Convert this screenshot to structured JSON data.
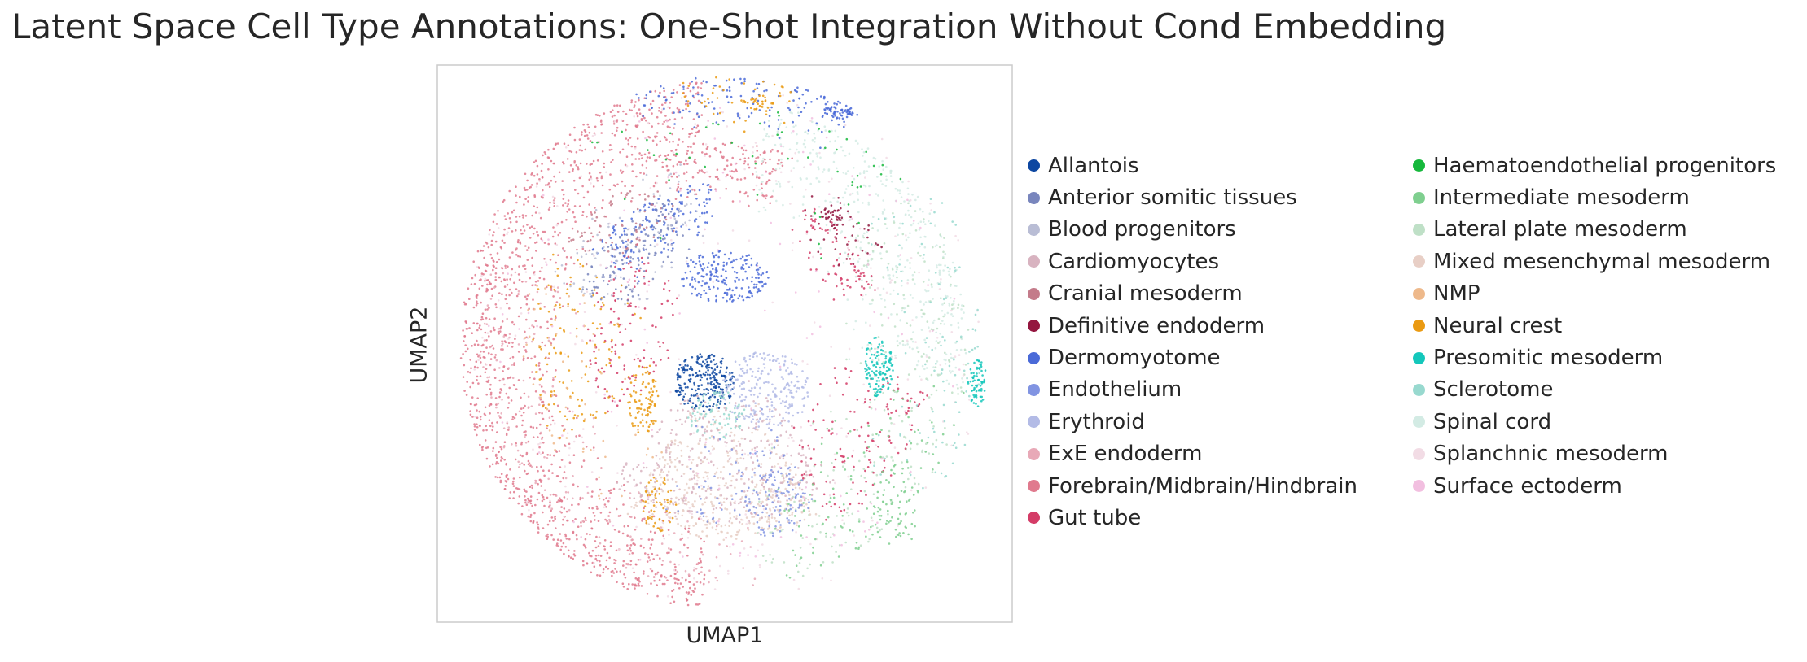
{
  "chart_data": {
    "type": "scatter",
    "title": "Latent Space Cell Type Annotations: One-Shot Integration Without Cond Embedding",
    "xlabel": "UMAP1",
    "ylabel": "UMAP2",
    "grid": false,
    "xticks": false,
    "yticks": false,
    "legend_position": "right",
    "legend_columns": 2,
    "categories": [
      {
        "name": "Allantois",
        "color": "#0d47a1"
      },
      {
        "name": "Anterior somitic tissues",
        "color": "#7986bd"
      },
      {
        "name": "Blood progenitors",
        "color": "#b9bdd5"
      },
      {
        "name": "Cardiomyocytes",
        "color": "#d8b3c0"
      },
      {
        "name": "Cranial mesoderm",
        "color": "#c47b8a"
      },
      {
        "name": "Definitive endoderm",
        "color": "#94163f"
      },
      {
        "name": "Dermomyotome",
        "color": "#4a6ad8"
      },
      {
        "name": "Endothelium",
        "color": "#8194e2"
      },
      {
        "name": "Erythroid",
        "color": "#b3bbe6"
      },
      {
        "name": "ExE endoderm",
        "color": "#e8a9b7"
      },
      {
        "name": "Forebrain/Midbrain/Hindbrain",
        "color": "#e07a8e"
      },
      {
        "name": "Gut tube",
        "color": "#d43c67"
      },
      {
        "name": "Haematoendothelial progenitors",
        "color": "#16b83c"
      },
      {
        "name": "Intermediate mesoderm",
        "color": "#7fcf8f"
      },
      {
        "name": "Lateral plate mesoderm",
        "color": "#bfe0c7"
      },
      {
        "name": "Mixed mesenchymal mesoderm",
        "color": "#e8cfc6"
      },
      {
        "name": "NMP",
        "color": "#eeb98b"
      },
      {
        "name": "Neural crest",
        "color": "#ea9a12"
      },
      {
        "name": "Presomitic mesoderm",
        "color": "#14c7bb"
      },
      {
        "name": "Sclerotome",
        "color": "#98d9cf"
      },
      {
        "name": "Spinal cord",
        "color": "#d3ebe4"
      },
      {
        "name": "Splanchnic mesoderm",
        "color": "#f2dce5"
      },
      {
        "name": "Surface ectoderm",
        "color": "#f2bfe0"
      }
    ]
  }
}
